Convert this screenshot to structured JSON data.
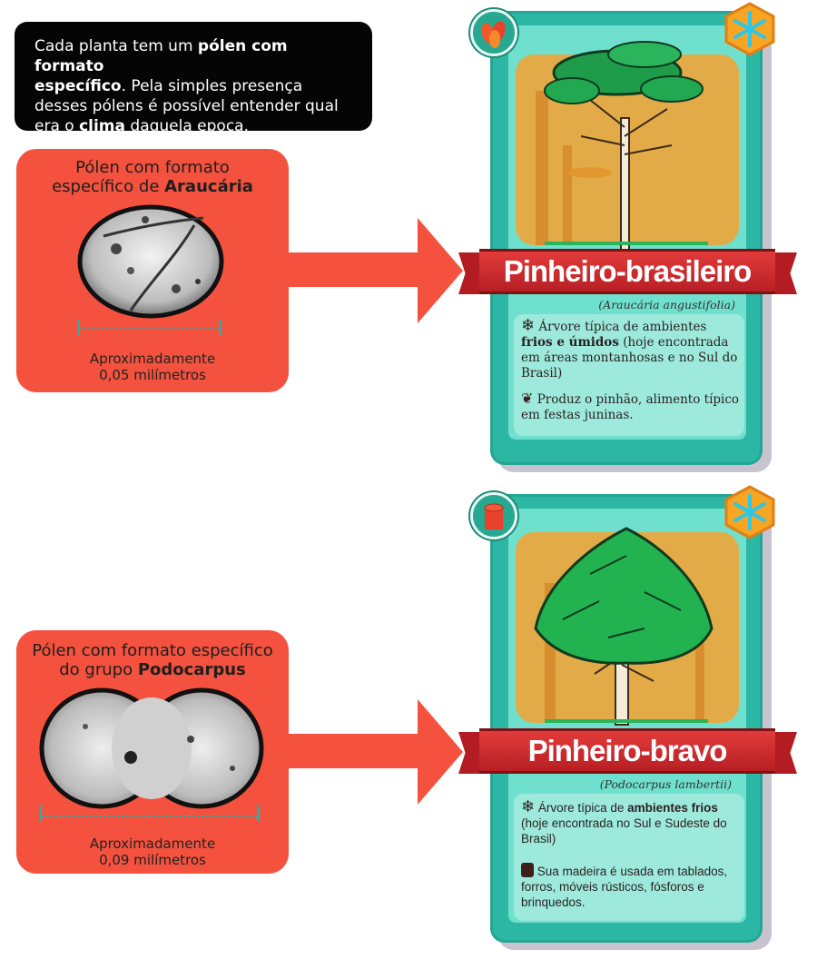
{
  "intro": {
    "line1_pre": "Cada planta tem um ",
    "line1_bold": "pólen com formato",
    "line2_bold": "específico",
    "line2_post": ". Pela simples presença",
    "line3": "desses pólens é possível entender qual",
    "line4_pre": "era o ",
    "line4_bold": "clima",
    "line4_post": " daquela epoca."
  },
  "pollen1": {
    "title_line1": "Pólen com formato",
    "title_line2_pre": "específico de ",
    "title_line2_bold": "Araucária",
    "size_line1": "Aproximadamente",
    "size_line2": "0,05 milímetros"
  },
  "pollen2": {
    "title_line1": "Pólen com formato específico",
    "title_line2_pre": "do grupo ",
    "title_line2_bold": "Podocarpus",
    "size_line1": "Aproximadamente",
    "size_line2": "0,09 milímetros"
  },
  "card1": {
    "name": "Pinheiro-brasileiro",
    "scientific": "(Araucária angustifolia)",
    "fact1_pre": "Árvore típica de ambientes",
    "fact1_bold": "frios e úmidos",
    "fact1_post": " (hoje encontrada em áreas montanhosas e no Sul do Brasil)",
    "fact2": "Produz o pinhão, alimento típico em festas juninas."
  },
  "card2": {
    "name": "Pinheiro-bravo",
    "scientific": "(Podocarpus lambertii)",
    "fact1_pre": "Árvore típica de ",
    "fact1_bold": "ambientes frios",
    "fact1_post": " (hoje encontrada no Sul e Sudeste do Brasil)",
    "fact2": "Sua madeira é usada em tablados, forros, móveis rústicos, fósforos e brinquedos."
  },
  "icons": {
    "snowflake": "snowflake-icon",
    "seed": "seed-icon",
    "wood": "wood-log-icon",
    "pine_nut": "pine-nut-icon"
  },
  "colors": {
    "panel": "#f4523e",
    "card": "#2bb7a3",
    "card_inner": "#6fe0cd",
    "ribbon": "#d22d2f",
    "hex_badge": "#f6a623"
  }
}
